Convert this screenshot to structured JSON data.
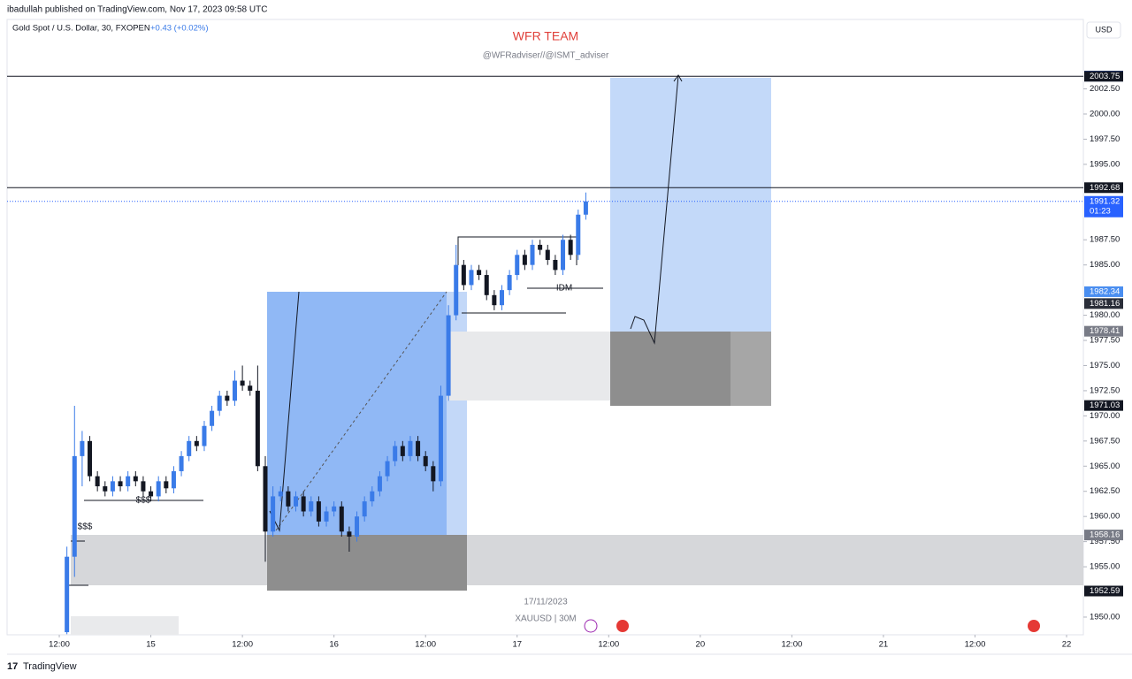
{
  "header": {
    "publisher": "ibadullah published on TradingView.com, Nov 17, 2023 09:58 UTC",
    "brand": "TradingView"
  },
  "chart_data": {
    "type": "candlestick",
    "title": "WFR TEAM",
    "subtitle": "@WFRadviser//@ISMT_adviser",
    "symbol": "Gold Spot / U.S. Dollar, 30, FXOPEN",
    "change": "+0.43 (+0.02%)",
    "currency": "USD",
    "watermark_date": "17/11/2023",
    "watermark_symbol": "XAUUSD | 30M",
    "annotations": [
      "$$$",
      "$$$",
      "IDM"
    ],
    "up_color": "#3a7be8",
    "down_color": "#131722",
    "x": [
      1,
      2,
      3,
      4,
      5,
      6,
      7,
      8,
      9,
      10,
      11,
      12,
      13,
      14,
      15,
      16,
      17,
      18,
      19,
      20,
      21,
      22,
      23,
      24,
      25,
      26,
      27,
      28,
      29,
      30,
      31,
      32,
      33,
      34,
      35,
      36,
      37,
      38,
      39,
      40,
      41,
      42,
      43,
      44,
      45,
      46,
      47,
      48,
      49,
      50,
      51,
      52,
      53,
      54,
      55,
      56,
      57,
      58,
      59,
      60,
      61,
      62,
      63,
      64,
      65,
      66,
      67,
      68,
      69
    ],
    "open": [
      1948.5,
      1956,
      1966,
      1967.5,
      1964,
      1963,
      1962.5,
      1963.5,
      1963,
      1964,
      1963.5,
      1962.5,
      1962,
      1963.5,
      1962.8,
      1964.5,
      1966,
      1967.5,
      1967,
      1969,
      1970.5,
      1972,
      1971.5,
      1973.5,
      1973,
      1972.5,
      1965,
      1958.5,
      1962,
      1962.5,
      1961,
      1962,
      1960.5,
      1961.5,
      1959.5,
      1960.5,
      1961,
      1958.5,
      1958,
      1960,
      1961.5,
      1962.5,
      1964,
      1965.5,
      1967,
      1966,
      1967.5,
      1966,
      1965,
      1963.5,
      1972,
      1980,
      1985,
      1983,
      1984.5,
      1984,
      1982,
      1981,
      1982.5,
      1984,
      1986,
      1985,
      1987,
      1986.5,
      1985.5,
      1984.5,
      1987.5,
      1986,
      1990
    ],
    "high": [
      1957,
      1971,
      1968.5,
      1968,
      1964.5,
      1963.5,
      1964,
      1964,
      1964.5,
      1964.5,
      1964,
      1963,
      1964,
      1964,
      1965,
      1966.5,
      1968,
      1968,
      1969.5,
      1971,
      1972.5,
      1972.5,
      1974.5,
      1975,
      1973.5,
      1975,
      1966,
      1963,
      1963,
      1963,
      1962.5,
      1962.5,
      1962,
      1962,
      1961,
      1961.5,
      1961.5,
      1959,
      1960.5,
      1962,
      1963,
      1964.5,
      1966,
      1967.5,
      1967.5,
      1968,
      1968,
      1966.5,
      1965.5,
      1973,
      1981,
      1987,
      1985.5,
      1985,
      1985,
      1984.5,
      1982.5,
      1983,
      1984.5,
      1986.5,
      1986.5,
      1987.5,
      1987.5,
      1987,
      1986,
      1988,
      1988,
      1990.5,
      1992.2
    ],
    "low": [
      1948.3,
      1954,
      1963,
      1963.5,
      1962.5,
      1962,
      1962,
      1962.5,
      1962.5,
      1963,
      1962,
      1961.5,
      1961.5,
      1962.3,
      1962.3,
      1964,
      1965.5,
      1966.5,
      1966.5,
      1968.5,
      1970,
      1971,
      1971,
      1972.5,
      1972,
      1964.5,
      1955.5,
      1958,
      1961.5,
      1960.5,
      1960.5,
      1960,
      1960,
      1959,
      1959,
      1960,
      1958,
      1956.5,
      1957.5,
      1959.5,
      1961,
      1962,
      1963.5,
      1965,
      1965.5,
      1965.5,
      1965.5,
      1964.5,
      1962.5,
      1963,
      1971.5,
      1979.5,
      1982.5,
      1982.5,
      1983.5,
      1981.5,
      1980.5,
      1980.5,
      1982,
      1983.5,
      1984.5,
      1984.5,
      1986,
      1985,
      1984,
      1984,
      1985.5,
      1985.5,
      1989.5
    ],
    "close": [
      1956,
      1966,
      1967.5,
      1964,
      1963,
      1962.5,
      1963.5,
      1963,
      1964,
      1963.5,
      1962.5,
      1962,
      1963.5,
      1962.8,
      1964.5,
      1966,
      1967.5,
      1967,
      1969,
      1970.5,
      1972,
      1971.5,
      1973.5,
      1973,
      1972.5,
      1965,
      1958.5,
      1962,
      1962.5,
      1961,
      1962,
      1960.5,
      1961.5,
      1959.5,
      1960.5,
      1961,
      1958.5,
      1958,
      1960,
      1961.5,
      1962.5,
      1964,
      1965.5,
      1967,
      1966,
      1967.5,
      1966,
      1965,
      1963.5,
      1972,
      1980,
      1985,
      1983,
      1984.5,
      1984,
      1982,
      1981,
      1982.5,
      1984,
      1986,
      1985,
      1987,
      1986.5,
      1985.5,
      1984.5,
      1987.5,
      1986,
      1990,
      1991.32
    ],
    "xlim": [
      -6.84,
      134.2
    ],
    "xticks": [
      {
        "value": 0,
        "label": "12:00"
      },
      {
        "value": 12,
        "label": "15"
      },
      {
        "value": 24,
        "label": "12:00"
      },
      {
        "value": 36,
        "label": "16"
      },
      {
        "value": 48,
        "label": "12:00"
      },
      {
        "value": 60,
        "label": "17"
      },
      {
        "value": 72,
        "label": "12:00"
      },
      {
        "value": 84,
        "label": "20"
      },
      {
        "value": 96,
        "label": "12:00"
      },
      {
        "value": 108,
        "label": "21"
      },
      {
        "value": 120,
        "label": "12:00"
      },
      {
        "value": 132,
        "label": "22"
      }
    ],
    "ylim": [
      1948.24,
      2009.4
    ],
    "yticks": [
      {
        "value": 1950,
        "label": "1950.00"
      },
      {
        "value": 1955,
        "label": "1955.00"
      },
      {
        "value": 1957.5,
        "label": "1957.50"
      },
      {
        "value": 1960,
        "label": "1960.00"
      },
      {
        "value": 1962.5,
        "label": "1962.50"
      },
      {
        "value": 1965,
        "label": "1965.00"
      },
      {
        "value": 1967.5,
        "label": "1967.50"
      },
      {
        "value": 1970,
        "label": "1970.00"
      },
      {
        "value": 1972.5,
        "label": "1972.50"
      },
      {
        "value": 1975,
        "label": "1975.00"
      },
      {
        "value": 1977.5,
        "label": "1977.50"
      },
      {
        "value": 1980,
        "label": "1980.00"
      },
      {
        "value": 1985,
        "label": "1985.00"
      },
      {
        "value": 1987.5,
        "label": "1987.50"
      },
      {
        "value": 1995,
        "label": "1995.00"
      },
      {
        "value": 1997.5,
        "label": "1997.50"
      },
      {
        "value": 2000,
        "label": "2000.00"
      },
      {
        "value": 2002.5,
        "label": "2002.50"
      }
    ],
    "levels": [
      {
        "value": 2003.77,
        "color": "#2962ff"
      },
      {
        "value": 2003.75,
        "color": "#131722",
        "line": "solid"
      },
      {
        "value": 1992.68,
        "color": "#131722",
        "line": "solid"
      },
      {
        "value": 1991.32,
        "color": "#2962ff",
        "line": "dotted",
        "countdown": "01:23"
      },
      {
        "value": 1982.34,
        "color": "#4a8ef0"
      },
      {
        "value": 1981.16,
        "color": "#2a2e39"
      },
      {
        "value": 1978.41,
        "color": "#787b86"
      },
      {
        "value": 1971.03,
        "color": "#131722"
      },
      {
        "value": 1958.16,
        "color": "#787b86"
      },
      {
        "value": 1952.59,
        "color": "#131722"
      }
    ]
  }
}
